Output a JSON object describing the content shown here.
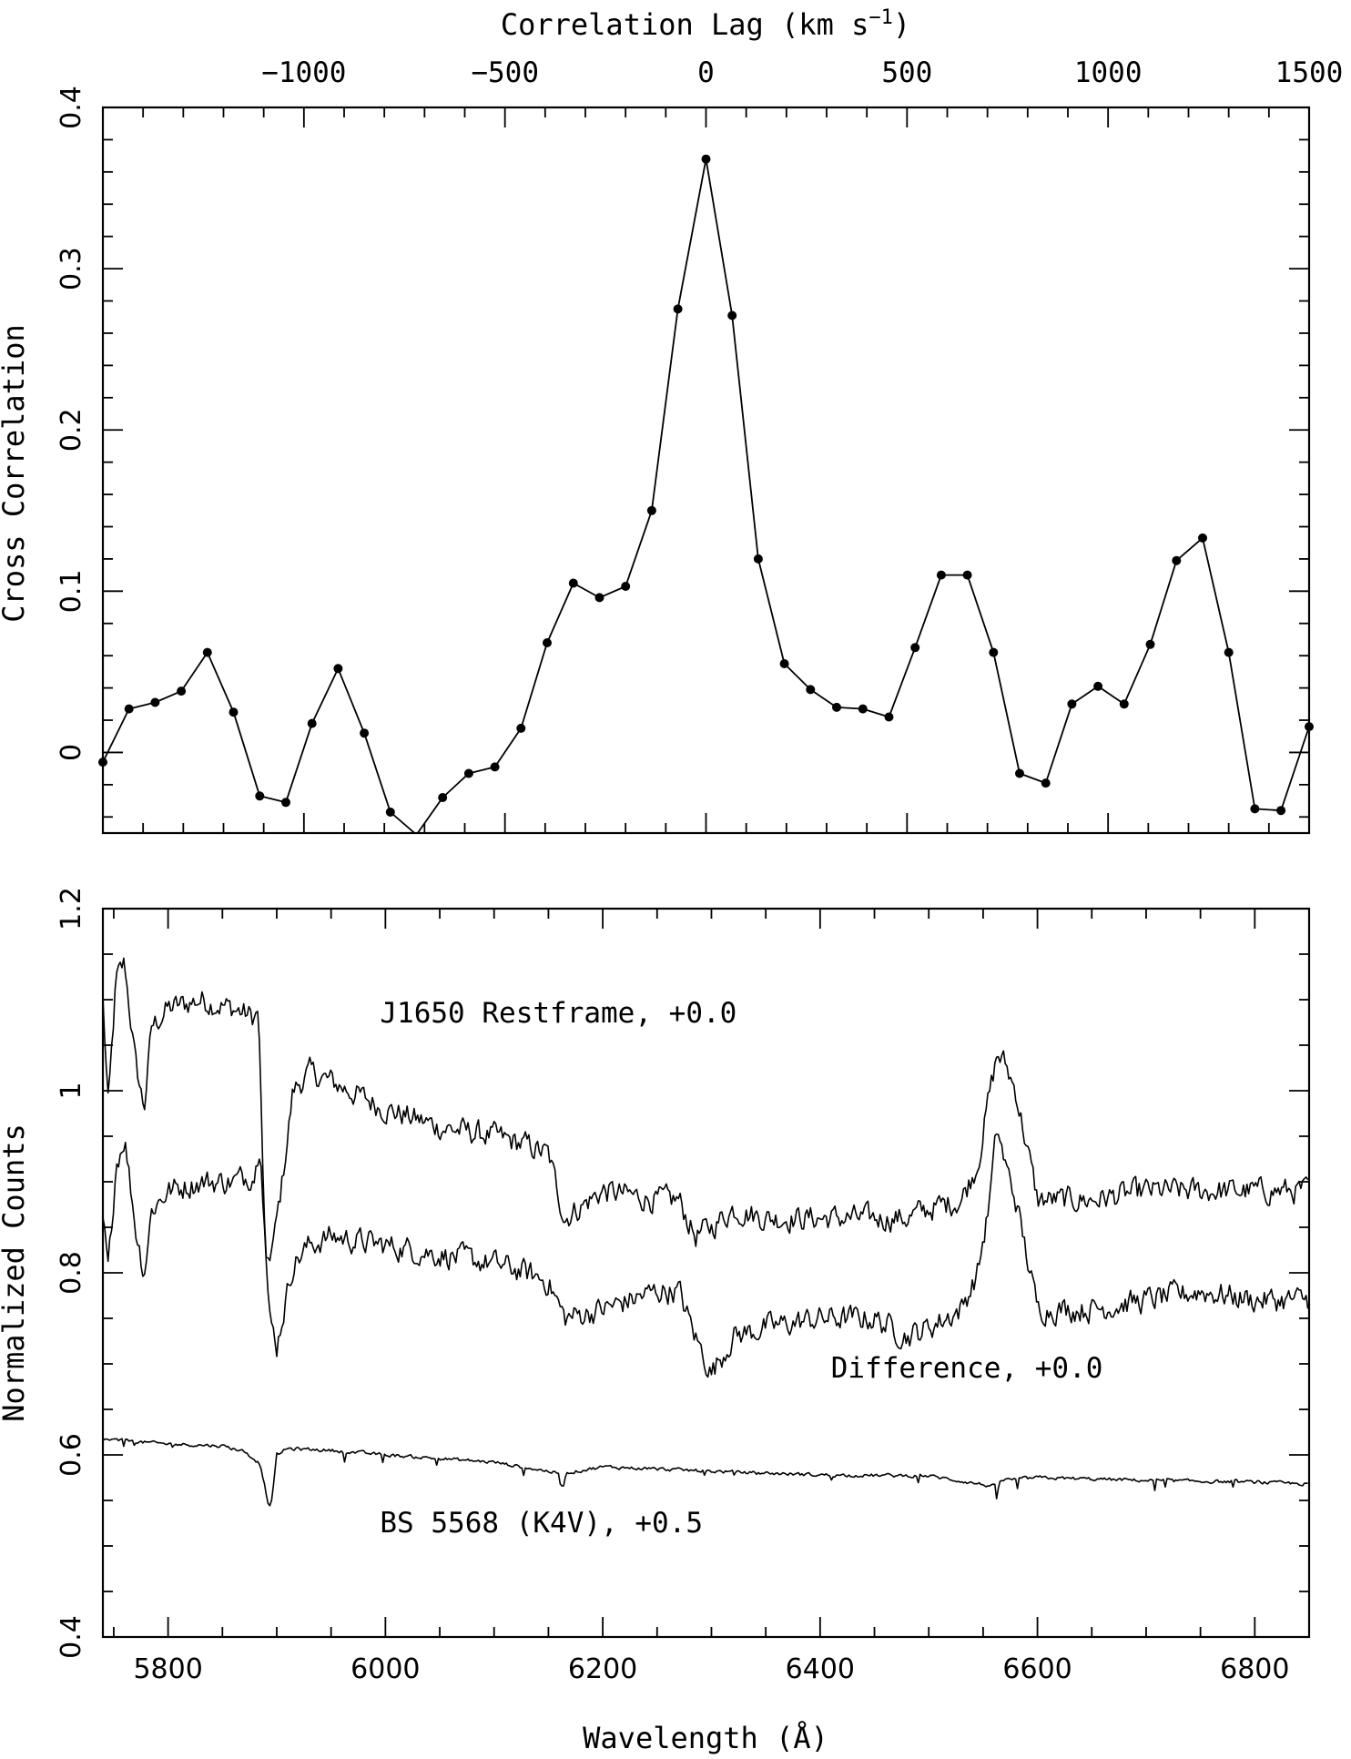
{
  "chart_data": [
    {
      "type": "line",
      "xlabel": "Correlation Lag (km s",
      "xlabel_sup": "−1",
      "xlabel_tail": ")",
      "ylabel": "Cross Correlation",
      "xlim": [
        -1500,
        1500
      ],
      "ylim": [
        -0.05,
        0.4
      ],
      "x_ticks": [
        {
          "value": -1000,
          "label": "−1000"
        },
        {
          "value": -500,
          "label": "−500"
        },
        {
          "value": 0,
          "label": "0"
        },
        {
          "value": 500,
          "label": "500"
        },
        {
          "value": 1000,
          "label": "1000"
        },
        {
          "value": 1500,
          "label": "1500"
        }
      ],
      "y_ticks": [
        {
          "value": 0,
          "label": "0"
        },
        {
          "value": 0.1,
          "label": "0.1"
        },
        {
          "value": 0.2,
          "label": "0.2"
        },
        {
          "value": 0.3,
          "label": "0.3"
        },
        {
          "value": 0.4,
          "label": "0.4"
        }
      ],
      "markers": true,
      "series": [
        {
          "x": [
            -1500,
            -1435,
            -1370,
            -1305,
            -1240,
            -1175,
            -1110,
            -1045,
            -980,
            -915,
            -850,
            -785,
            -720,
            -655,
            -590,
            -525,
            -460,
            -395,
            -330,
            -265,
            -200,
            -135,
            -70,
            0,
            65,
            130,
            195,
            260,
            325,
            390,
            455,
            520,
            585,
            650,
            715,
            780,
            845,
            910,
            975,
            1040,
            1105,
            1170,
            1235,
            1300,
            1365,
            1430,
            1500
          ],
          "y": [
            -0.006,
            0.027,
            0.031,
            0.038,
            0.062,
            0.025,
            -0.027,
            -0.031,
            0.018,
            0.052,
            0.012,
            -0.037,
            -0.051,
            -0.028,
            -0.013,
            -0.009,
            0.015,
            0.068,
            0.105,
            0.096,
            0.103,
            0.15,
            0.275,
            0.368,
            0.271,
            0.12,
            0.055,
            0.039,
            0.028,
            0.027,
            0.022,
            0.065,
            0.11,
            0.11,
            0.062,
            -0.013,
            -0.019,
            0.03,
            0.041,
            0.03,
            0.067,
            0.119,
            0.133,
            0.062,
            -0.035,
            -0.036,
            0.016
          ]
        }
      ]
    },
    {
      "type": "line",
      "xlabel": "Wavelength (Å)",
      "ylabel": "Normalized Counts",
      "xlim": [
        5740,
        6850
      ],
      "ylim": [
        0.4,
        1.2
      ],
      "x_ticks": [
        {
          "value": 5800,
          "label": "5800"
        },
        {
          "value": 6000,
          "label": "6000"
        },
        {
          "value": 6200,
          "label": "6200"
        },
        {
          "value": 6400,
          "label": "6400"
        },
        {
          "value": 6600,
          "label": "6600"
        },
        {
          "value": 6800,
          "label": "6800"
        }
      ],
      "y_ticks": [
        {
          "value": 0.4,
          "label": "0.4"
        },
        {
          "value": 0.6,
          "label": "0.6"
        },
        {
          "value": 0.8,
          "label": "0.8"
        },
        {
          "value": 1.0,
          "label": "1"
        },
        {
          "value": 1.2,
          "label": "1.2"
        }
      ],
      "annotations": [
        {
          "text": "J1650 Restframe, +0.0",
          "x": 5995,
          "y": 1.075
        },
        {
          "text": "Difference, +0.0",
          "x": 6410,
          "y": 0.685
        },
        {
          "text": "BS 5568 (K4V), +0.5",
          "x": 5995,
          "y": 0.515
        }
      ],
      "series": [
        {
          "annotation": "J1650 Restframe, +0.0",
          "noise": 0.022,
          "x": [
            5740,
            5745,
            5752,
            5760,
            5770,
            5778,
            5785,
            5800,
            5830,
            5860,
            5880,
            5883,
            5890,
            5898,
            5905,
            5915,
            5930,
            5950,
            6000,
            6050,
            6100,
            6130,
            6150,
            6165,
            6200,
            6250,
            6270,
            6285,
            6300,
            6320,
            6350,
            6400,
            6450,
            6480,
            6500,
            6530,
            6545,
            6555,
            6563,
            6570,
            6580,
            6590,
            6600,
            6650,
            6700,
            6750,
            6800,
            6850
          ],
          "y": [
            1.1,
            0.98,
            1.12,
            1.14,
            1.03,
            0.98,
            1.07,
            1.09,
            1.1,
            1.09,
            1.08,
            1.09,
            0.8,
            0.84,
            0.9,
            1.0,
            1.02,
            1.01,
            0.98,
            0.96,
            0.95,
            0.94,
            0.93,
            0.86,
            0.89,
            0.88,
            0.88,
            0.84,
            0.85,
            0.87,
            0.86,
            0.86,
            0.86,
            0.86,
            0.87,
            0.88,
            0.92,
            0.99,
            1.04,
            1.03,
            1.0,
            0.94,
            0.88,
            0.88,
            0.89,
            0.89,
            0.89,
            0.89
          ]
        },
        {
          "annotation": "Difference, +0.0",
          "noise": 0.022,
          "x": [
            5740,
            5745,
            5752,
            5760,
            5770,
            5778,
            5785,
            5800,
            5830,
            5860,
            5880,
            5885,
            5893,
            5900,
            5915,
            5930,
            5950,
            6000,
            6050,
            6100,
            6130,
            6150,
            6165,
            6200,
            6250,
            6270,
            6285,
            6300,
            6320,
            6350,
            6400,
            6450,
            6480,
            6500,
            6530,
            6545,
            6555,
            6563,
            6570,
            6580,
            6590,
            6600,
            6650,
            6700,
            6750,
            6800,
            6850
          ],
          "y": [
            0.86,
            0.8,
            0.92,
            0.95,
            0.85,
            0.8,
            0.87,
            0.89,
            0.9,
            0.9,
            0.91,
            0.95,
            0.75,
            0.72,
            0.81,
            0.83,
            0.84,
            0.83,
            0.82,
            0.81,
            0.8,
            0.79,
            0.75,
            0.76,
            0.78,
            0.78,
            0.73,
            0.69,
            0.73,
            0.74,
            0.75,
            0.75,
            0.73,
            0.74,
            0.76,
            0.8,
            0.87,
            0.96,
            0.92,
            0.88,
            0.82,
            0.76,
            0.76,
            0.77,
            0.78,
            0.77,
            0.77
          ]
        },
        {
          "annotation": "BS 5568 (K4V), +0.5",
          "noise": 0.003,
          "x": [
            5740,
            5800,
            5850,
            5870,
            5885,
            5890,
            5893,
            5896,
            5900,
            5910,
            5950,
            6000,
            6100,
            6160,
            6163,
            6166,
            6200,
            6300,
            6400,
            6500,
            6562,
            6563,
            6565,
            6600,
            6700,
            6800,
            6850
          ],
          "y": [
            0.617,
            0.612,
            0.61,
            0.604,
            0.59,
            0.56,
            0.54,
            0.555,
            0.6,
            0.607,
            0.605,
            0.6,
            0.592,
            0.58,
            0.56,
            0.58,
            0.587,
            0.582,
            0.578,
            0.577,
            0.565,
            0.555,
            0.572,
            0.575,
            0.572,
            0.57,
            0.568
          ]
        }
      ]
    }
  ]
}
